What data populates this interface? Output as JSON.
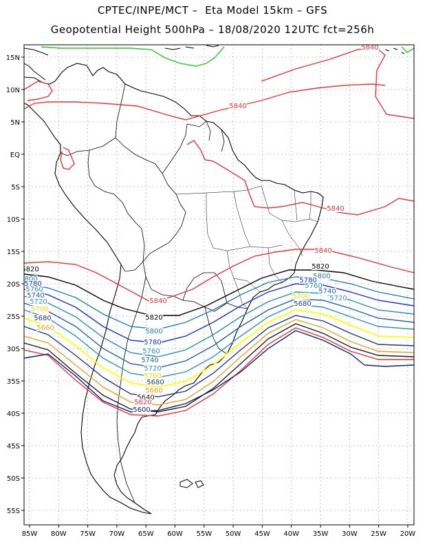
{
  "header": {
    "title_line1": "CPTEC/INPE/MCT –  Eta Model 15km – GFS",
    "title_line2": "Geopotential Height 500hPa – 18/08/2020 12UTC fct=256h"
  },
  "axes": {
    "lon_labels": [
      "85W",
      "80W",
      "75W",
      "70W",
      "65W",
      "60W",
      "55W",
      "50W",
      "45W",
      "40W",
      "35W",
      "30W",
      "25W",
      "20W"
    ],
    "lat_labels": [
      "15N",
      "10N",
      "5N",
      "EQ",
      "5S",
      "10S",
      "15S",
      "20S",
      "25S",
      "30S",
      "35S",
      "40S",
      "45S",
      "50S",
      "55S"
    ]
  },
  "contour_colors": {
    "5600": "#0a1f6e",
    "5620": "#e8333a",
    "5640": "#1c1c1c",
    "5660": "#e8a020",
    "5680": "#1a3a80",
    "5700": "#ffff00",
    "5720": "#3090c0",
    "5740": "#2060b0",
    "5760": "#2090b8",
    "5780": "#1030e0",
    "5800": "#2080b0",
    "5820": "#000000",
    "5840": "#e8333a",
    "5860": "#22cc22"
  },
  "contour_labels": [
    {
      "text": "5840",
      "color": "#e8333a"
    },
    {
      "text": "5840",
      "color": "#e8333a"
    },
    {
      "text": "5840",
      "color": "#e8333a"
    },
    {
      "text": "5840",
      "color": "#e8333a"
    },
    {
      "text": "5840",
      "color": "#e8333a"
    },
    {
      "text": "5820",
      "color": "#000000"
    },
    {
      "text": "5820",
      "color": "#000000"
    },
    {
      "text": "5820",
      "color": "#000000"
    },
    {
      "text": "5800",
      "color": "#2080b0"
    },
    {
      "text": "5800",
      "color": "#2080b0"
    },
    {
      "text": "5800",
      "color": "#2080b0"
    },
    {
      "text": "5780",
      "color": "#1030e0"
    },
    {
      "text": "5780",
      "color": "#1030e0"
    },
    {
      "text": "5780",
      "color": "#1030e0"
    },
    {
      "text": "5760",
      "color": "#2090b8"
    },
    {
      "text": "5760",
      "color": "#2090b8"
    },
    {
      "text": "5760",
      "color": "#2090b8"
    },
    {
      "text": "5740",
      "color": "#2060b0"
    },
    {
      "text": "5740",
      "color": "#2060b0"
    },
    {
      "text": "5740",
      "color": "#2060b0"
    },
    {
      "text": "5720",
      "color": "#3090c0"
    },
    {
      "text": "5720",
      "color": "#3090c0"
    },
    {
      "text": "5720",
      "color": "#3090c0"
    },
    {
      "text": "5700",
      "color": "#ffd700"
    },
    {
      "text": "5700",
      "color": "#ffd700"
    },
    {
      "text": "5700",
      "color": "#ffd700"
    },
    {
      "text": "5680",
      "color": "#1a3a80"
    },
    {
      "text": "5680",
      "color": "#1a3a80"
    },
    {
      "text": "5680",
      "color": "#1a3a80"
    },
    {
      "text": "5660",
      "color": "#e8a020"
    },
    {
      "text": "5660",
      "color": "#e8a020"
    },
    {
      "text": "5640",
      "color": "#1c1c1c"
    },
    {
      "text": "5620",
      "color": "#e8333a"
    },
    {
      "text": "5600",
      "color": "#0a1f6e"
    }
  ]
}
